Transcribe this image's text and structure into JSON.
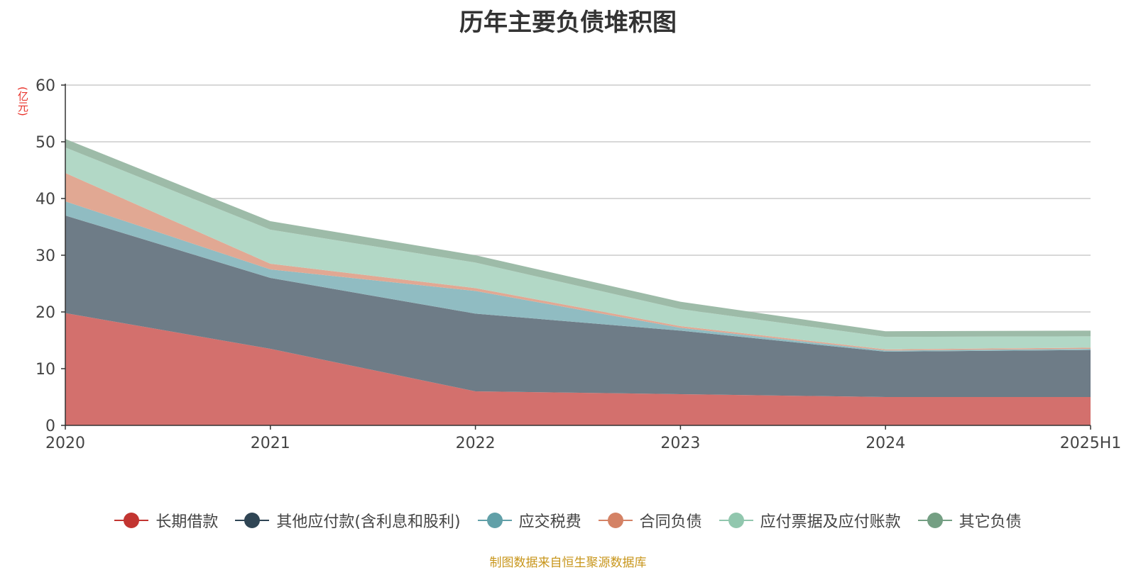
{
  "chart_data": {
    "type": "area",
    "stacked": true,
    "title": "历年主要负债堆积图",
    "unit": "(亿元)",
    "categories": [
      "2020",
      "2021",
      "2022",
      "2023",
      "2024",
      "2025H1"
    ],
    "ylim": [
      0,
      60
    ],
    "yticks": [
      "0",
      "10",
      "20",
      "30",
      "40",
      "50",
      "60"
    ],
    "grid": true,
    "legend_position": "bottom",
    "series": [
      {
        "name": "长期借款",
        "color": "#c23531",
        "fill": "#d3706d",
        "values": [
          19.8,
          13.5,
          6.0,
          5.5,
          5.0,
          5.0
        ]
      },
      {
        "name": "其他应付款(含利息和股利)",
        "color": "#2f4554",
        "fill": "#6e7c87",
        "values": [
          17.2,
          12.5,
          13.7,
          11.2,
          8.0,
          8.3
        ]
      },
      {
        "name": "应交税费",
        "color": "#61a0a8",
        "fill": "#90bcc2",
        "values": [
          2.5,
          1.5,
          4.0,
          0.5,
          0.2,
          0.2
        ]
      },
      {
        "name": "合同负债",
        "color": "#d48265",
        "fill": "#e1a893",
        "values": [
          5.0,
          1.0,
          0.5,
          0.3,
          0.2,
          0.2
        ]
      },
      {
        "name": "应付票据及应付账款",
        "color": "#91c7ae",
        "fill": "#b2d8c6",
        "values": [
          4.5,
          6.0,
          4.5,
          3.0,
          2.2,
          2.0
        ]
      },
      {
        "name": "其它负债",
        "color": "#749f83",
        "fill": "#9dbba8",
        "values": [
          1.5,
          1.5,
          1.3,
          1.3,
          1.0,
          1.0
        ]
      }
    ]
  },
  "source_text": "制图数据来自恒生聚源数据库"
}
